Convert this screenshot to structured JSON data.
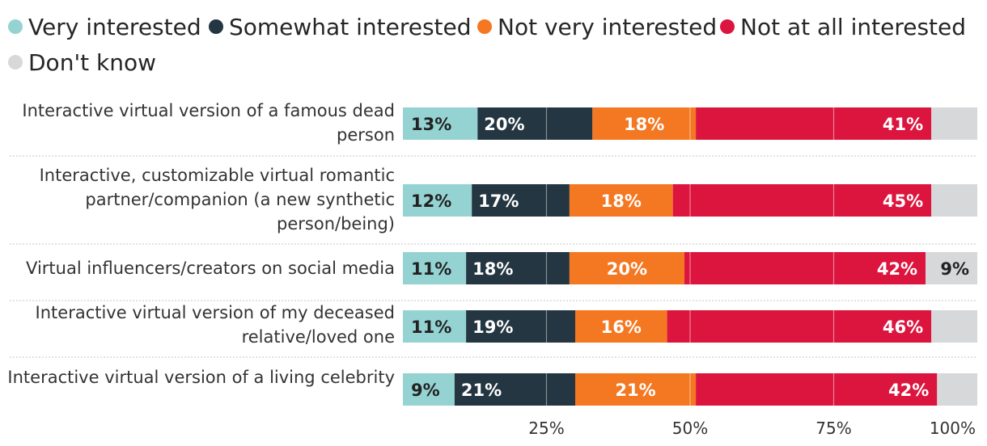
{
  "chart_data": {
    "type": "bar",
    "orientation": "horizontal",
    "stacked": true,
    "title": "",
    "xlabel": "",
    "ylabel": "",
    "xlim": [
      0,
      100
    ],
    "x_ticks": [
      "25%",
      "50%",
      "75%",
      "100%"
    ],
    "x_tick_values": [
      25,
      50,
      75,
      100
    ],
    "grid": true,
    "legend_position": "top",
    "categories": [
      "Interactive virtual version of a famous dead person",
      "Interactive, customizable virtual romantic partner/companion (a new synthetic person/being)",
      "Virtual influencers/creators on social media",
      "Interactive virtual version of my deceased relative/loved one",
      "Interactive virtual version of a living celebrity"
    ],
    "series": [
      {
        "name": "Very interested",
        "color": "#95d3d3",
        "label_color": "#222222",
        "values": [
          13,
          12,
          11,
          11,
          9
        ]
      },
      {
        "name": "Somewhat interested",
        "color": "#243641",
        "label_color": "#ffffff",
        "values": [
          20,
          17,
          18,
          19,
          21
        ]
      },
      {
        "name": "Not very interested",
        "color": "#f47721",
        "label_color": "#ffffff",
        "values": [
          18,
          18,
          20,
          16,
          21
        ]
      },
      {
        "name": "Not at all interested",
        "color": "#dc153e",
        "label_color": "#ffffff",
        "values": [
          41,
          45,
          42,
          46,
          42
        ]
      },
      {
        "name": "Don't know",
        "color": "#d6d8da",
        "label_color": "#222222",
        "values": [
          8,
          8,
          9,
          8,
          7
        ]
      }
    ],
    "data_labels": [
      [
        "13%",
        "20%",
        "18%",
        "41%",
        ""
      ],
      [
        "12%",
        "17%",
        "18%",
        "45%",
        ""
      ],
      [
        "11%",
        "18%",
        "20%",
        "42%",
        "9%"
      ],
      [
        "11%",
        "19%",
        "16%",
        "46%",
        ""
      ],
      [
        "9%",
        "21%",
        "21%",
        "42%",
        ""
      ]
    ]
  }
}
